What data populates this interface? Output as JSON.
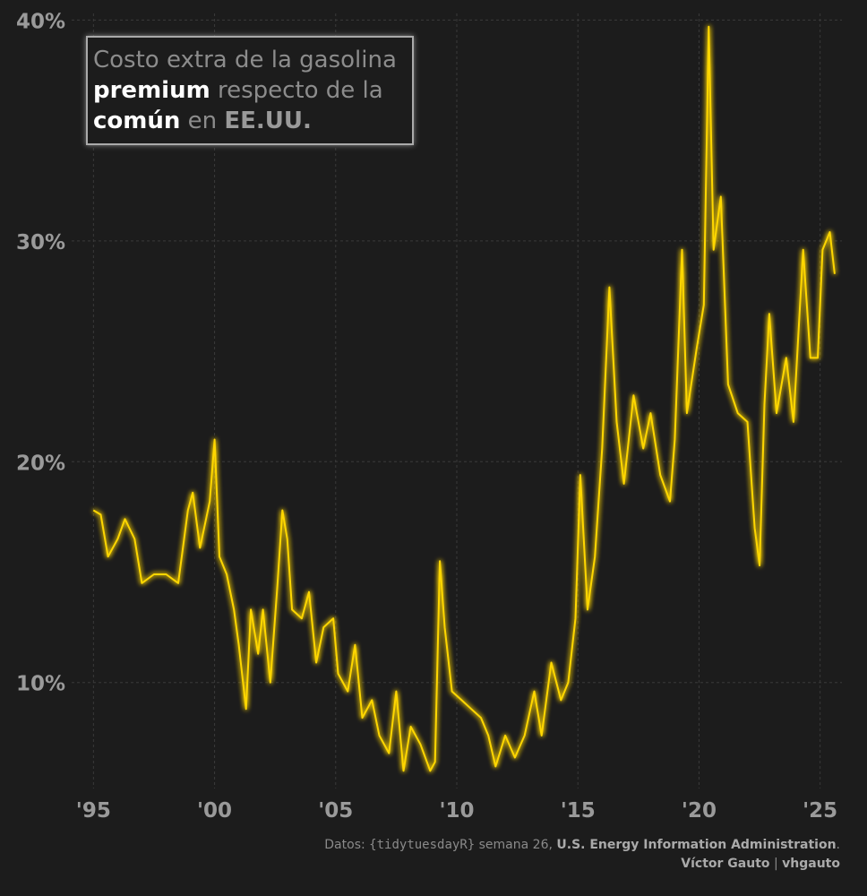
{
  "chart_data": {
    "type": "line",
    "title_parts": [
      "Costo extra de la gasolina",
      "premium",
      "respecto de la",
      "común",
      "en",
      "EE.UU."
    ],
    "caption_parts": [
      "Datos:",
      "{tidytuesdayR}",
      "semana 26,",
      "U.S. Energy Information Administration",
      "."
    ],
    "author_parts": [
      "Víctor Gauto",
      "|",
      "vhgauto"
    ],
    "series": [
      {
        "name": "premium",
        "color": "#ffd700",
        "x": [
          1995.0,
          1995.3,
          1995.6,
          1996.0,
          1996.3,
          1996.7,
          1997.0,
          1997.5,
          1998.0,
          1998.5,
          1998.9,
          1999.1,
          1999.4,
          1999.8,
          2000.0,
          2000.2,
          2000.5,
          2000.8,
          2001.0,
          2001.3,
          2001.5,
          2001.8,
          2002.0,
          2002.3,
          2002.6,
          2002.8,
          2003.0,
          2003.2,
          2003.6,
          2003.9,
          2004.2,
          2004.5,
          2004.9,
          2005.1,
          2005.5,
          2005.8,
          2006.1,
          2006.5,
          2006.8,
          2007.2,
          2007.5,
          2007.8,
          2008.1,
          2008.5,
          2008.9,
          2009.1,
          2009.3,
          2009.5,
          2009.8,
          2010.2,
          2010.6,
          2011.0,
          2011.3,
          2011.6,
          2012.0,
          2012.4,
          2012.8,
          2013.2,
          2013.5,
          2013.9,
          2014.3,
          2014.6,
          2014.9,
          2015.1,
          2015.4,
          2015.7,
          2016.0,
          2016.3,
          2016.6,
          2016.9,
          2017.3,
          2017.7,
          2018.0,
          2018.4,
          2018.8,
          2019.0,
          2019.3,
          2019.5,
          2019.9,
          2020.2,
          2020.4,
          2020.6,
          2020.9,
          2021.2,
          2021.6,
          2022.0,
          2022.3,
          2022.5,
          2022.7,
          2022.9,
          2023.2,
          2023.6,
          2023.9,
          2024.3,
          2024.6,
          2024.9,
          2025.1,
          2025.4,
          2025.6
        ],
        "values": [
          17.8,
          17.6,
          15.7,
          16.5,
          17.4,
          16.5,
          14.5,
          14.9,
          14.9,
          14.5,
          17.8,
          18.6,
          16.1,
          18.2,
          21.0,
          15.7,
          14.9,
          13.3,
          11.7,
          8.8,
          13.3,
          11.3,
          13.3,
          10.0,
          14.5,
          17.8,
          16.5,
          13.3,
          12.9,
          14.1,
          10.9,
          12.5,
          12.9,
          10.4,
          9.6,
          11.7,
          8.4,
          9.2,
          7.6,
          6.8,
          9.6,
          6.0,
          8.0,
          7.2,
          6.0,
          6.4,
          15.5,
          12.5,
          9.6,
          9.2,
          8.8,
          8.4,
          7.6,
          6.2,
          7.6,
          6.6,
          7.6,
          9.6,
          7.6,
          10.9,
          9.2,
          10.0,
          12.9,
          19.4,
          13.3,
          15.7,
          20.6,
          27.9,
          21.8,
          19.0,
          23.0,
          20.6,
          22.2,
          19.4,
          18.2,
          21.0,
          29.6,
          22.2,
          25.1,
          27.1,
          39.7,
          29.6,
          32.0,
          23.5,
          22.2,
          21.8,
          17.0,
          15.3,
          22.6,
          26.7,
          22.2,
          24.7,
          21.8,
          29.6,
          24.7,
          24.7,
          29.6,
          30.4,
          28.5
        ]
      }
    ],
    "xlim": [
      1994.1,
      2025.9
    ],
    "xticks": [
      {
        "value": 1995,
        "label": "'95"
      },
      {
        "value": 2000,
        "label": "'00"
      },
      {
        "value": 2005,
        "label": "'05"
      },
      {
        "value": 2010,
        "label": "'10"
      },
      {
        "value": 2015,
        "label": "'15"
      },
      {
        "value": 2020,
        "label": "'20"
      },
      {
        "value": 2025,
        "label": "'25"
      }
    ],
    "ylim": [
      5.2,
      40.3
    ],
    "yticks": [
      {
        "value": 10,
        "label": "10%"
      },
      {
        "value": 20,
        "label": "20%"
      },
      {
        "value": 30,
        "label": "30%"
      },
      {
        "value": 40,
        "label": "40%"
      }
    ],
    "grid": true
  }
}
